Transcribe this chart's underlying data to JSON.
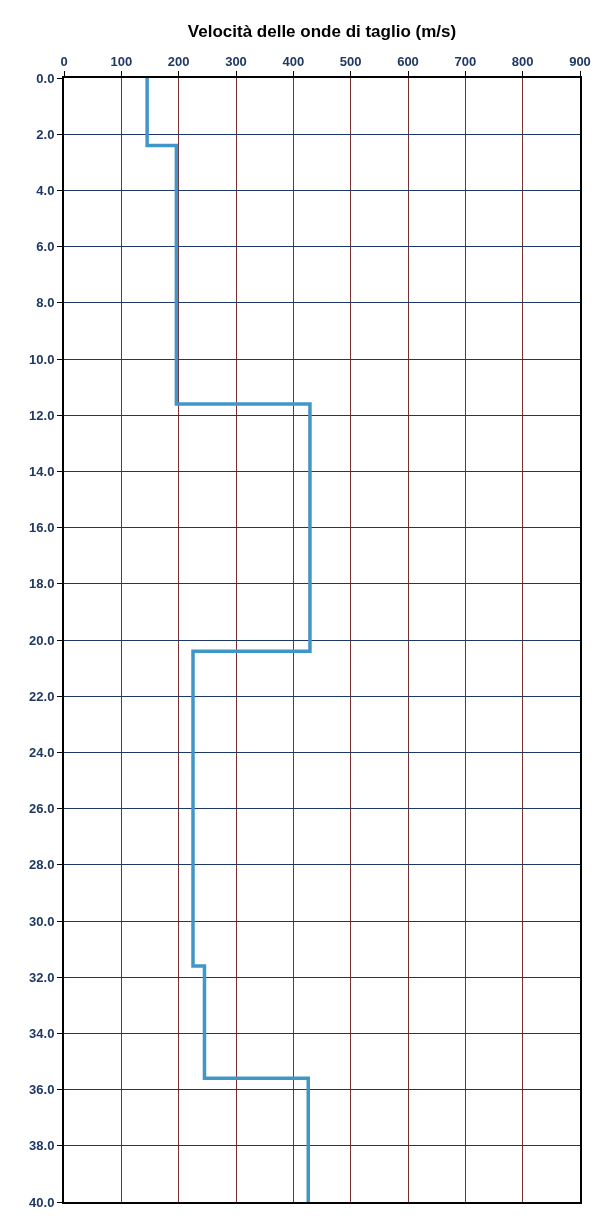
{
  "chart_data": {
    "type": "line",
    "xlabel": "Velocità delle onde di taglio (m/s)",
    "x": [
      145,
      145,
      196,
      196,
      429,
      429,
      225,
      225,
      245,
      245,
      426,
      426
    ],
    "series": [
      {
        "color": "#4196c8",
        "values": [
          0,
          2.4,
          2.4,
          11.6,
          11.6,
          20.4,
          20.4,
          31.6,
          31.6,
          35.6,
          35.6,
          40
        ]
      }
    ],
    "xlim": [
      0,
      900
    ],
    "xticks": [
      0,
      100,
      200,
      300,
      400,
      500,
      600,
      700,
      800,
      900
    ],
    "ylim": [
      40,
      0
    ],
    "yticks": [
      {
        "value": 0,
        "label": "0.0"
      },
      {
        "value": 2,
        "label": "2.0"
      },
      {
        "value": 4,
        "label": "4.0"
      },
      {
        "value": 6,
        "label": "6.0"
      },
      {
        "value": 8,
        "label": "8.0"
      },
      {
        "value": 10,
        "label": "10.0"
      },
      {
        "value": 12,
        "label": "12.0"
      },
      {
        "value": 14,
        "label": "14.0"
      },
      {
        "value": 16,
        "label": "16.0"
      },
      {
        "value": 18,
        "label": "18.0"
      },
      {
        "value": 20,
        "label": "20.0"
      },
      {
        "value": 22,
        "label": "22.0"
      },
      {
        "value": 24,
        "label": "24.0"
      },
      {
        "value": 26,
        "label": "26.0"
      },
      {
        "value": 28,
        "label": "28.0"
      },
      {
        "value": 30,
        "label": "30.0"
      },
      {
        "value": 32,
        "label": "32.0"
      },
      {
        "value": 34,
        "label": "34.0"
      },
      {
        "value": 36,
        "label": "36.0"
      },
      {
        "value": 38,
        "label": "38.0"
      },
      {
        "value": 40,
        "label": "40.0"
      }
    ],
    "grid": true,
    "marker": "none",
    "line_style": "solid"
  }
}
